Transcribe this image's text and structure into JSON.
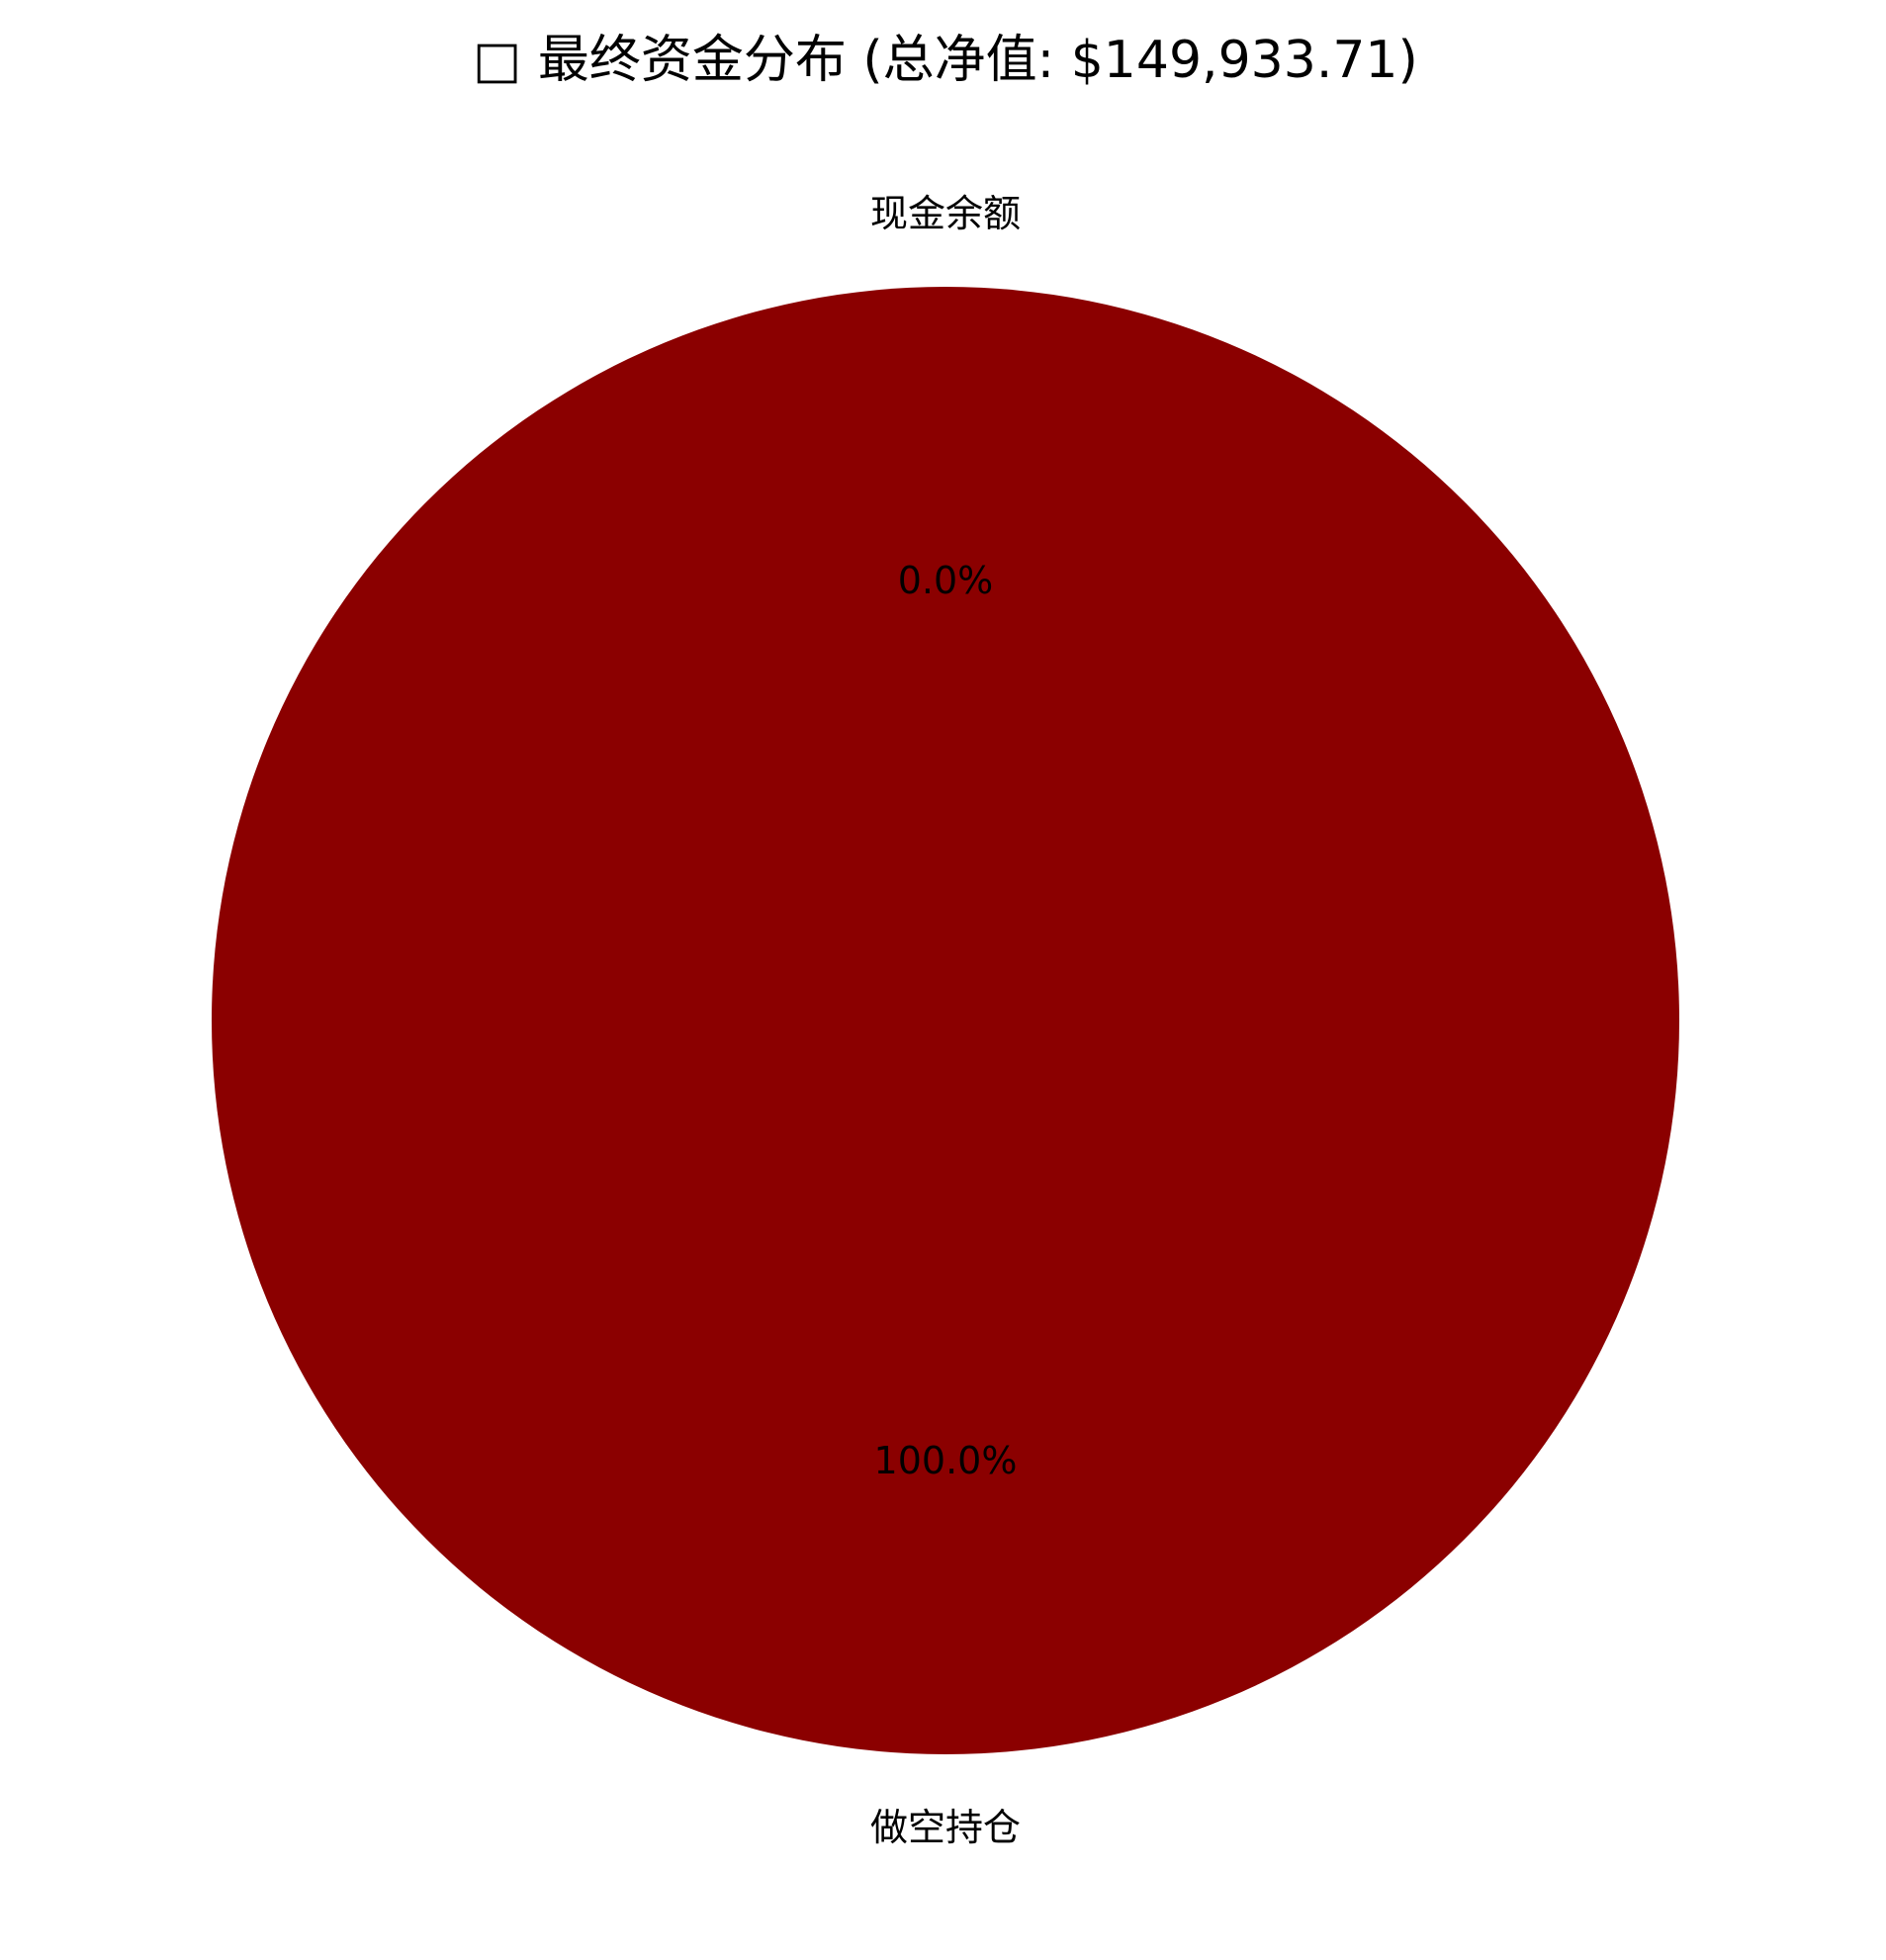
{
  "chart_data": {
    "type": "pie",
    "title": "□ 最终资金分布 (总净值: $149,933.71)",
    "slices": [
      {
        "label": "现金余额",
        "value": 0.0,
        "pct_text": "0.0%",
        "color": "#ffffff"
      },
      {
        "label": "做空持仓",
        "value": 100.0,
        "pct_text": "100.0%",
        "color": "#8b0000"
      }
    ],
    "legend": "none"
  }
}
